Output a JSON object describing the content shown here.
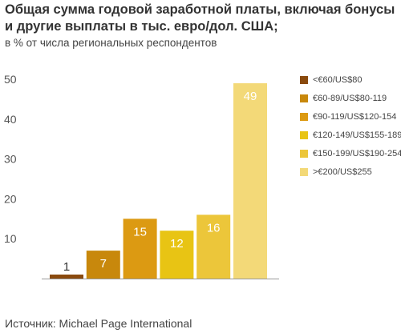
{
  "title": "Общая сумма годовой заработной платы, включая бонусы и другие выплаты в тыс. евро/дол. США;",
  "subtitle": "в % от числа региональных респондентов",
  "source": "Источник: Michael Page International",
  "chart_data": {
    "type": "bar",
    "categories": [
      "<€60/US$80",
      "€60-89/US$80-119",
      "€90-119/US$120-154",
      "€120-149/US$155-189",
      "€150-199/US$190-254",
      ">€200/US$255"
    ],
    "values": [
      1,
      7,
      15,
      12,
      16,
      49
    ],
    "data_labels": [
      "1",
      "7",
      "15",
      "12",
      "16",
      "49"
    ],
    "colors": [
      "#8a4a0e",
      "#c8880c",
      "#dc9a12",
      "#e8c414",
      "#ecc63a",
      "#f3d978"
    ],
    "ylim": [
      0,
      50
    ],
    "y_ticks": [
      10,
      20,
      30,
      40,
      50
    ],
    "y_tick_labels": [
      "10",
      "20",
      "30",
      "40",
      "50"
    ],
    "grid": false,
    "legend_position": "right"
  }
}
